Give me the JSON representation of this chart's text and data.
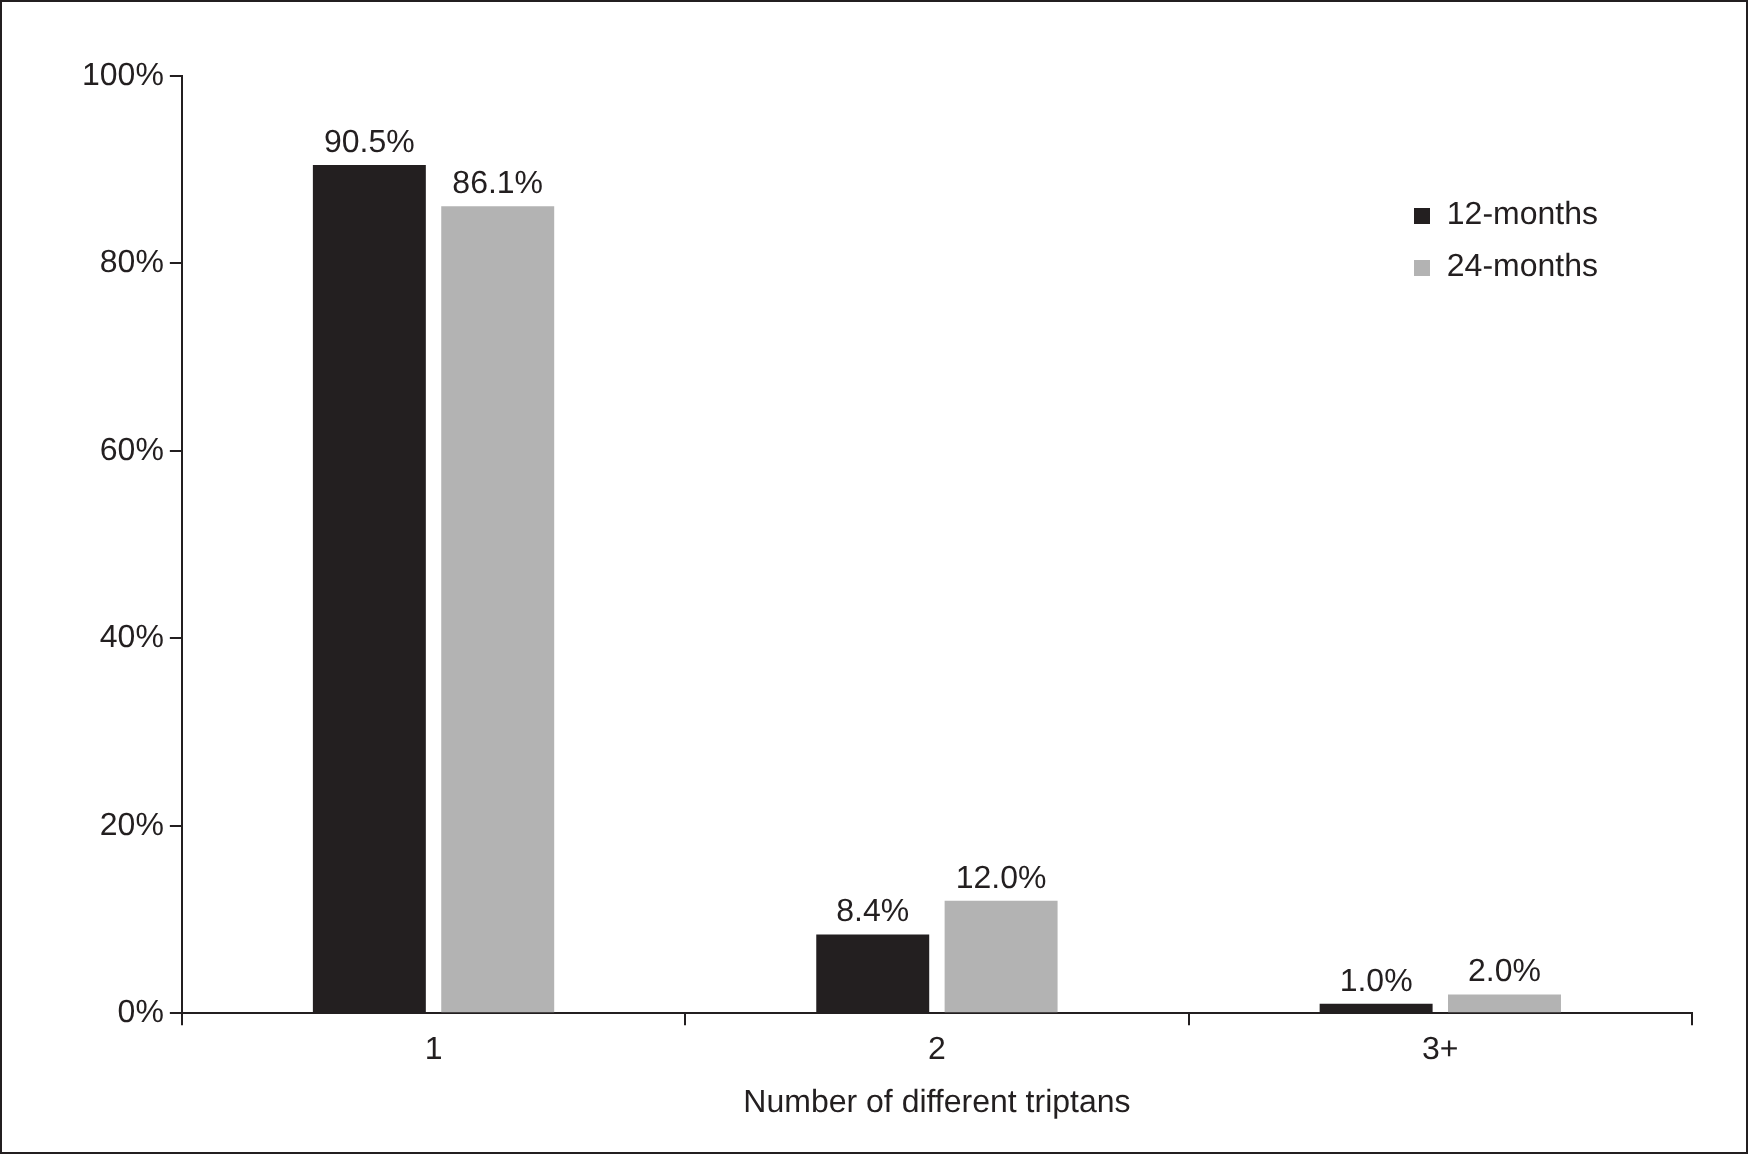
{
  "chart_data": {
    "type": "bar",
    "xlabel": "Number of different triptans",
    "categories": [
      "1",
      "2",
      "3+"
    ],
    "series": [
      {
        "name": "12-months",
        "color": "#231f20",
        "values": [
          90.5,
          8.4,
          1.0
        ],
        "value_labels": [
          "90.5%",
          "8.4%",
          "1.0%"
        ]
      },
      {
        "name": "24-months",
        "color": "#b3b3b3",
        "values": [
          86.1,
          12.0,
          2.0
        ],
        "value_labels": [
          "86.1%",
          "12.0%",
          "2.0%"
        ]
      }
    ],
    "ylim": [
      0,
      100
    ],
    "yticks": [
      {
        "value": 0,
        "label": "0%"
      },
      {
        "value": 20,
        "label": "20%"
      },
      {
        "value": 40,
        "label": "40%"
      },
      {
        "value": 60,
        "label": "60%"
      },
      {
        "value": 80,
        "label": "80%"
      },
      {
        "value": 100,
        "label": "100%"
      }
    ],
    "grid": false,
    "legend": "top right"
  }
}
